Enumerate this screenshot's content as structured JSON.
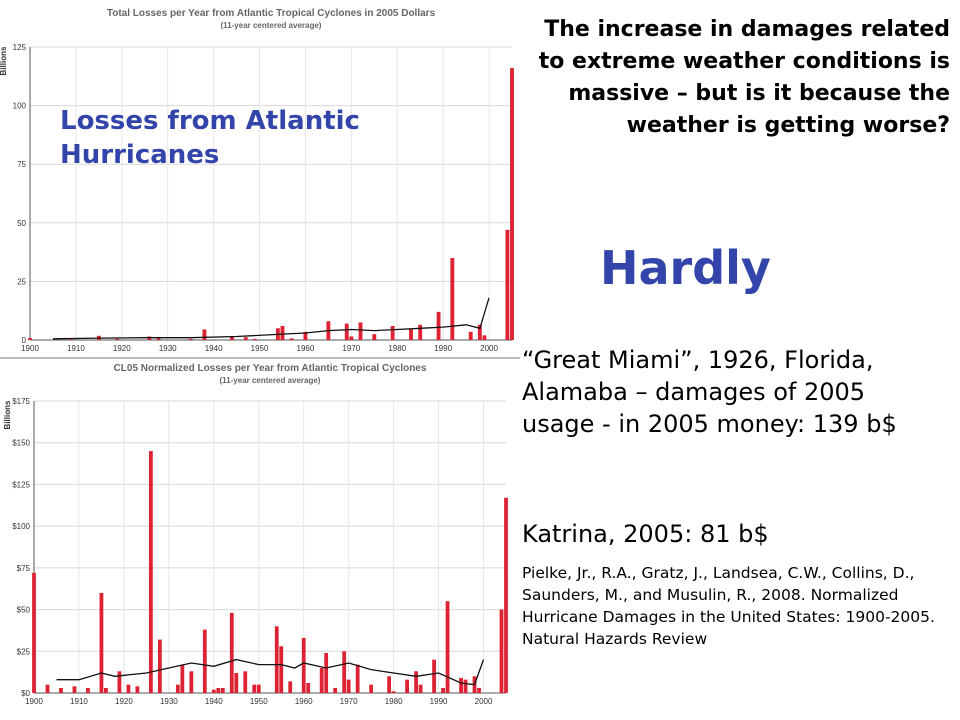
{
  "overlay_title": "Losses from Atlantic Hurricanes",
  "headline": "The increase in damages related to extreme weather conditions is massive – but is it because the weather is getting worse?",
  "answer": "Hardly",
  "note_great_miami": "“Great Miami”, 1926, Florida, Alamaba – damages of 2005 usage - in 2005 money: 139 b$",
  "note_katrina": "Katrina, 2005: 81 b$",
  "citation": "Pielke, Jr., R.A., Gratz, J., Landsea, C.W., Collins, D., Saunders, M., and Musulin, R., 2008. Normalized Hurricane Damages in the United States: 1900-2005. Natural Hazards Review",
  "colors": {
    "bar": "#dd2233",
    "line": "#111111",
    "accent_text": "#3344aa"
  },
  "chart_data": [
    {
      "type": "bar",
      "title": "Total Losses per Year from Atlantic Tropical Cyclones in 2005 Dollars",
      "subtitle": "(11-year centered average)",
      "ylabel": "Billions",
      "xlabel": "",
      "xlim": [
        1900,
        2005
      ],
      "ylim": [
        0,
        125
      ],
      "yticks": [
        0,
        25,
        50,
        75,
        100,
        125
      ],
      "yticklabels": [
        "0",
        "25",
        "50",
        "75",
        "100",
        "125"
      ],
      "xticks": [
        1900,
        1910,
        1920,
        1930,
        1940,
        1950,
        1960,
        1970,
        1980,
        1990,
        2000
      ],
      "grid": true,
      "series": [
        {
          "type": "bar",
          "x": [
            1900,
            1909,
            1915,
            1919,
            1926,
            1928,
            1935,
            1938,
            1944,
            1947,
            1949,
            1954,
            1955,
            1957,
            1960,
            1965,
            1969,
            1970,
            1972,
            1975,
            1979,
            1983,
            1985,
            1989,
            1992,
            1996,
            1998,
            1999,
            2004,
            2005
          ],
          "values": [
            0.8,
            0.3,
            1.8,
            0.5,
            1.5,
            0.7,
            0.5,
            4.5,
            1.5,
            1.2,
            0.5,
            5.0,
            6.0,
            0.7,
            3.5,
            8.0,
            7.0,
            1.5,
            7.5,
            2.5,
            6.0,
            4.5,
            6.5,
            12.0,
            35.0,
            3.5,
            6.5,
            2.0,
            47.0,
            116.0
          ]
        },
        {
          "type": "line",
          "x": [
            1905,
            1915,
            1925,
            1935,
            1945,
            1955,
            1960,
            1965,
            1970,
            1975,
            1980,
            1985,
            1990,
            1995,
            1998,
            2000
          ],
          "values": [
            0.5,
            0.8,
            1.0,
            1.0,
            1.5,
            2.5,
            3.0,
            4.0,
            4.5,
            4.0,
            4.5,
            5.0,
            5.5,
            6.5,
            5.0,
            18.0
          ]
        }
      ]
    },
    {
      "type": "bar",
      "title": "CL05 Normalized Losses per Year from Atlantic Tropical Cyclones",
      "subtitle": "(11-year centered average)",
      "ylabel": "Billions",
      "xlabel": "",
      "xlim": [
        1900,
        2005
      ],
      "ylim": [
        0,
        175
      ],
      "yticks": [
        0,
        25,
        50,
        75,
        100,
        125,
        150,
        175
      ],
      "yticklabels": [
        "$0",
        "$25",
        "$50",
        "$75",
        "$100",
        "$125",
        "$150",
        "$175"
      ],
      "xticks": [
        1900,
        1910,
        1920,
        1930,
        1940,
        1950,
        1960,
        1970,
        1980,
        1990,
        2000
      ],
      "grid": true,
      "series": [
        {
          "type": "bar",
          "x": [
            1900,
            1903,
            1906,
            1909,
            1912,
            1915,
            1916,
            1919,
            1921,
            1923,
            1926,
            1928,
            1932,
            1933,
            1935,
            1938,
            1940,
            1941,
            1942,
            1944,
            1945,
            1947,
            1949,
            1950,
            1954,
            1955,
            1957,
            1960,
            1961,
            1964,
            1965,
            1967,
            1969,
            1970,
            1972,
            1975,
            1979,
            1980,
            1983,
            1985,
            1986,
            1989,
            1991,
            1992,
            1995,
            1996,
            1998,
            1999,
            2004,
            2005
          ],
          "values": [
            72,
            5,
            3,
            4,
            3,
            60,
            3,
            13,
            5,
            4,
            145,
            32,
            5,
            17,
            13,
            38,
            2,
            3,
            3,
            48,
            12,
            13,
            5,
            5,
            40,
            28,
            7,
            33,
            6,
            15,
            24,
            3,
            25,
            8,
            17,
            5,
            10,
            1,
            8,
            13,
            5,
            20,
            3,
            55,
            9,
            8,
            10,
            3,
            50,
            117
          ]
        },
        {
          "type": "line",
          "x": [
            1905,
            1910,
            1915,
            1918,
            1925,
            1930,
            1935,
            1940,
            1945,
            1950,
            1955,
            1958,
            1960,
            1965,
            1970,
            1975,
            1980,
            1985,
            1990,
            1995,
            1998,
            2000
          ],
          "values": [
            8,
            8,
            12,
            10,
            12,
            15,
            18,
            16,
            20,
            17,
            17,
            15,
            18,
            15,
            18,
            14,
            12,
            10,
            12,
            6,
            5,
            20
          ]
        }
      ]
    }
  ]
}
